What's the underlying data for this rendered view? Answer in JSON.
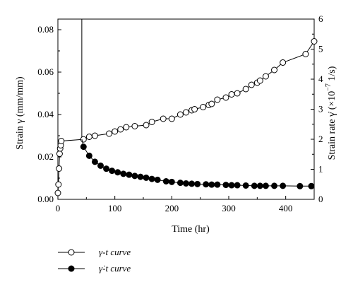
{
  "chart_data": {
    "type": "line",
    "xlabel": "Time (hr)",
    "ylabel_left": "Strain γ (mm/mm)",
    "ylabel_right_prefix": "Strain rate γ̇ (×10",
    "ylabel_right_exp": "−7",
    "ylabel_right_suffix": " 1/s)",
    "xlim": [
      0,
      450
    ],
    "ylim_left": [
      0,
      0.085
    ],
    "ylim_right": [
      0,
      6
    ],
    "x_ticks": [
      "0",
      "100",
      "200",
      "300",
      "400"
    ],
    "y_left_ticks": [
      "0.00",
      "0.02",
      "0.04",
      "0.06",
      "0.08"
    ],
    "y_right_ticks": [
      "0",
      "1",
      "2",
      "3",
      "4",
      "5",
      "6"
    ],
    "legend": [
      {
        "name": "γ-t curve",
        "marker": "open-circle"
      },
      {
        "name": "γ̇-t curve",
        "marker": "filled-circle"
      }
    ],
    "series": [
      {
        "name": "γ-t curve",
        "axis": "left",
        "marker": "open",
        "x": [
          0,
          1,
          2,
          3,
          4,
          5,
          6,
          45,
          55,
          65,
          90,
          100,
          110,
          120,
          135,
          155,
          165,
          185,
          200,
          215,
          225,
          235,
          240,
          255,
          265,
          270,
          280,
          295,
          305,
          315,
          330,
          340,
          350,
          355,
          365,
          380,
          395,
          435,
          450
        ],
        "y": [
          0.003,
          0.007,
          0.0145,
          0.0215,
          0.024,
          0.0255,
          0.0275,
          0.0283,
          0.0295,
          0.03,
          0.031,
          0.032,
          0.033,
          0.034,
          0.0345,
          0.035,
          0.0365,
          0.038,
          0.038,
          0.04,
          0.041,
          0.042,
          0.0425,
          0.0435,
          0.0445,
          0.045,
          0.047,
          0.048,
          0.0495,
          0.05,
          0.052,
          0.054,
          0.055,
          0.056,
          0.058,
          0.061,
          0.0645,
          0.0685,
          0.0745
        ]
      },
      {
        "name": "γ̇-t curve",
        "axis": "right",
        "marker": "filled",
        "x": [
          45,
          55,
          65,
          75,
          85,
          95,
          105,
          115,
          125,
          135,
          145,
          155,
          165,
          175,
          190,
          200,
          215,
          225,
          235,
          245,
          260,
          270,
          280,
          295,
          305,
          315,
          330,
          345,
          355,
          365,
          380,
          395,
          425,
          445
        ],
        "y": [
          1.75,
          1.45,
          1.25,
          1.12,
          1.02,
          0.95,
          0.9,
          0.85,
          0.82,
          0.78,
          0.75,
          0.72,
          0.68,
          0.65,
          0.6,
          0.58,
          0.55,
          0.53,
          0.52,
          0.51,
          0.5,
          0.49,
          0.49,
          0.48,
          0.47,
          0.47,
          0.46,
          0.45,
          0.45,
          0.45,
          0.45,
          0.45,
          0.44,
          0.44
        ]
      }
    ],
    "spike": {
      "x": 42,
      "y_top": 6,
      "y_bottom": 2.0
    }
  }
}
